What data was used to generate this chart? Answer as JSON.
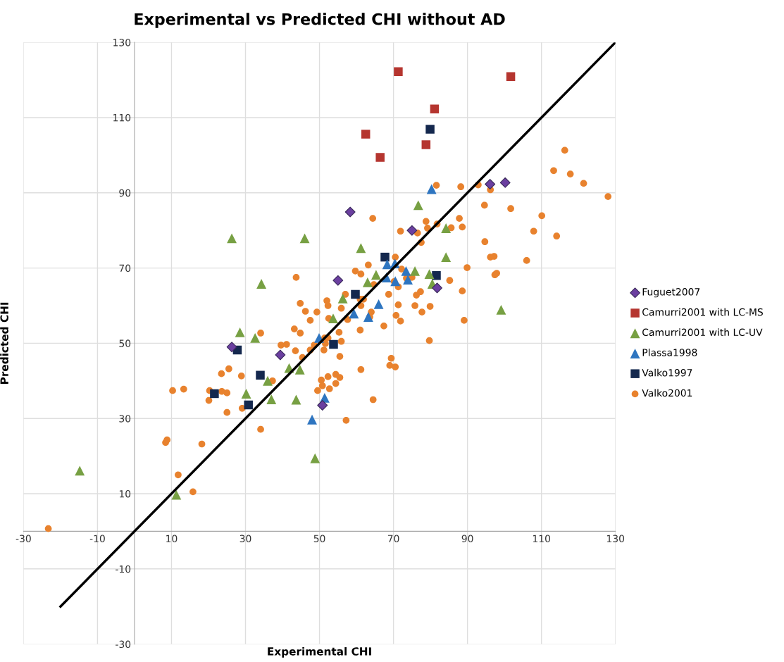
{
  "chart_data": {
    "type": "scatter",
    "title": "Experimental vs Predicted CHI without AD",
    "xlabel": "Experimental CHI",
    "ylabel": "Predicted CHI",
    "xlim": [
      -30,
      130
    ],
    "ylim": [
      -30,
      130
    ],
    "xticks": [
      -30,
      -10,
      10,
      30,
      50,
      70,
      90,
      110,
      130
    ],
    "yticks": [
      -30,
      -10,
      10,
      30,
      50,
      70,
      90,
      110,
      130
    ],
    "grid": true,
    "legend": "right",
    "series": [
      {
        "name": "Fuguet2007",
        "color": "#6b3fa0",
        "marker": "diamond",
        "x": [
          58.3,
          75.0,
          55.0,
          81.8,
          96.1,
          100.2,
          26.3,
          39.4,
          50.8
        ],
        "values": [
          84.9,
          80.0,
          66.7,
          64.7,
          92.3,
          92.7,
          49.0,
          46.9,
          33.5
        ]
      },
      {
        "name": "Camurri2001 with LC-MS",
        "color": "#b5352f",
        "marker": "square",
        "x": [
          71.3,
          101.7,
          81.1,
          62.5,
          78.8,
          66.4
        ],
        "values": [
          122.2,
          120.9,
          112.3,
          105.6,
          102.8,
          99.4
        ]
      },
      {
        "name": "Camurri2001 with LC-UV",
        "color": "#77a043",
        "marker": "triangle",
        "x": [
          26.3,
          46.0,
          34.3,
          76.7,
          84.2,
          61.2,
          84.2,
          65.3,
          75.8,
          79.7,
          63.0,
          80.5,
          56.3,
          53.7,
          99.1,
          48.8,
          28.5,
          32.6,
          41.8,
          44.7,
          36.0,
          30.2,
          37.0,
          43.7,
          -14.8,
          11.3
        ],
        "values": [
          77.9,
          77.9,
          65.8,
          86.7,
          80.6,
          75.3,
          72.9,
          68.2,
          69.2,
          68.4,
          66.2,
          65.8,
          61.9,
          56.6,
          58.9,
          19.4,
          52.9,
          51.4,
          43.4,
          43.0,
          40.0,
          36.6,
          35.1,
          35.0,
          16.1,
          9.7
        ]
      },
      {
        "name": "Plassa1998",
        "color": "#2e75c0",
        "marker": "triangle",
        "x": [
          80.3,
          68.3,
          70.4,
          73.4,
          68.1,
          70.5,
          73.9,
          66.0,
          59.3,
          63.2,
          49.9,
          51.4,
          48.0
        ],
        "values": [
          91.0,
          71.0,
          71.2,
          69.2,
          67.5,
          66.5,
          66.9,
          60.4,
          57.9,
          57.0,
          51.4,
          35.5,
          29.7
        ]
      },
      {
        "name": "Valko1997",
        "color": "#14284e",
        "marker": "square",
        "x": [
          79.9,
          67.7,
          81.6,
          59.7,
          53.8,
          27.8,
          34.0,
          21.6,
          30.8
        ],
        "values": [
          106.9,
          72.9,
          68.0,
          63.0,
          49.7,
          48.2,
          41.5,
          36.6,
          33.6
        ]
      },
      {
        "name": "Valko2001",
        "color": "#e8822e",
        "marker": "circle",
        "x": [
          -23.3,
          10.3,
          13.3,
          8.4,
          8.8,
          11.8,
          15.8,
          18.2,
          20.1,
          20.3,
          23.5,
          25.5,
          23.6,
          25.0,
          25.0,
          28.9,
          29.1,
          34.1,
          34.1,
          37.3,
          39.6,
          41.1,
          43.2,
          44.8,
          43.5,
          45.4,
          44.8,
          46.2,
          47.5,
          47.5,
          43.7,
          116.3,
          113.3,
          117.8,
          121.4,
          128.0,
          81.6,
          88.2,
          92.9,
          96.2,
          94.6,
          101.7,
          110.1,
          107.9,
          114.1,
          106.0,
          94.7,
          96.2,
          97.2,
          97.4,
          97.9,
          89.9,
          87.8,
          88.6,
          85.6,
          81.8,
          78.8,
          79.2,
          76.5,
          77.5,
          71.9,
          64.4,
          70.5,
          63.2,
          59.7,
          61.2,
          72.2,
          64.7,
          70.2,
          71.3,
          75.0,
          73.5,
          85.2,
          88.6,
          77.3,
          76.2,
          68.7,
          57.0,
          52.0,
          52.3,
          49.3,
          55.9,
          61.0,
          61.9,
          61.2,
          64.0,
          63.6,
          71.3,
          75.8,
          79.9,
          77.7,
          70.7,
          71.9,
          67.4,
          89.1,
          79.7,
          52.5,
          57.6,
          61.0,
          55.3,
          55.9,
          52.3,
          51.4,
          51.6,
          48.6,
          51.2,
          55.5,
          69.4,
          69.0,
          70.5,
          61.2,
          54.4,
          55.5,
          52.3,
          50.5,
          50.8,
          54.4,
          52.7,
          49.5,
          64.5,
          57.2
        ],
        "values": [
          0.7,
          37.4,
          37.8,
          23.6,
          24.3,
          15.0,
          10.5,
          23.2,
          34.8,
          37.4,
          41.9,
          43.2,
          37.2,
          36.8,
          31.6,
          41.3,
          32.7,
          52.7,
          27.1,
          40.0,
          49.5,
          49.7,
          53.8,
          52.7,
          48.0,
          46.2,
          60.6,
          58.5,
          56.1,
          48.2,
          67.5,
          101.3,
          95.9,
          95.0,
          92.5,
          89.0,
          92.0,
          91.6,
          92.1,
          90.8,
          86.7,
          85.8,
          83.9,
          79.8,
          78.5,
          72.0,
          77.0,
          72.9,
          73.1,
          68.2,
          68.6,
          70.1,
          83.2,
          80.9,
          80.7,
          81.7,
          82.4,
          80.6,
          79.3,
          76.8,
          79.8,
          83.2,
          72.9,
          70.8,
          69.2,
          68.4,
          69.7,
          65.6,
          66.4,
          65.0,
          67.5,
          67.3,
          66.7,
          63.9,
          63.7,
          62.8,
          63.0,
          63.0,
          61.3,
          60.0,
          58.3,
          59.3,
          61.7,
          61.7,
          60.0,
          58.3,
          57.0,
          60.2,
          60.0,
          59.8,
          58.3,
          57.4,
          55.9,
          54.6,
          56.1,
          50.7,
          56.6,
          56.3,
          53.5,
          52.9,
          50.5,
          51.4,
          51.4,
          49.9,
          49.5,
          48.2,
          46.5,
          46.0,
          44.1,
          43.7,
          43.0,
          41.7,
          40.9,
          41.1,
          40.2,
          38.7,
          39.3,
          37.9,
          37.4,
          35.0,
          29.5
        ]
      },
      {
        "type": "line",
        "color": "#000000",
        "marker": "none",
        "line_style": "solid",
        "x": [
          -20,
          130
        ],
        "values": [
          -20,
          130
        ]
      }
    ]
  }
}
